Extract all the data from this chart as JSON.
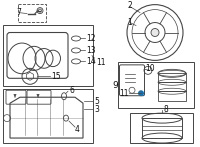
{
  "bg_color": "#ffffff",
  "line_color": "#444444",
  "gray_fill": "#e8e8e8",
  "dark_gray": "#666666",
  "blue_dot": "#1a6fa8",
  "label_color": "#111111",
  "figsize": [
    2.0,
    1.47
  ],
  "dpi": 100
}
